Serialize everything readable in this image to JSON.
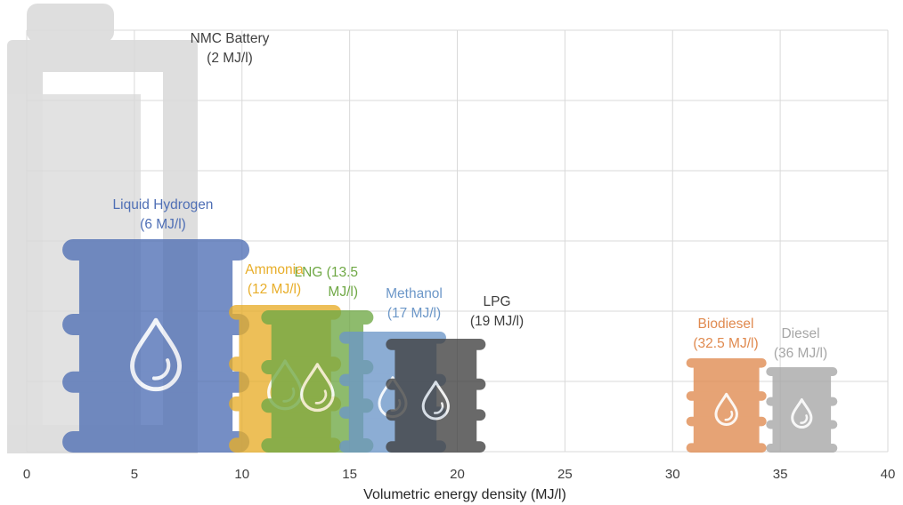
{
  "chart_data": {
    "type": "scatter",
    "xlabel": "Volumetric energy density (MJ/l)",
    "xlim": [
      0,
      40
    ],
    "x_ticks": [
      "0",
      "5",
      "10",
      "15",
      "20",
      "25",
      "30",
      "35",
      "40"
    ],
    "grid": true,
    "series": [
      {
        "name": "NMC Battery",
        "label": [
          "NMC Battery",
          "(2 MJ/l)"
        ],
        "x": 2,
        "color": "#d9d9d9",
        "icon": "battery-icon"
      },
      {
        "name": "Liquid Hydrogen",
        "label": [
          "Liquid Hydrogen",
          "(6 MJ/l)"
        ],
        "x": 6,
        "color": "#4f6fb5",
        "icon": "fuel-barrel-icon"
      },
      {
        "name": "Ammonia",
        "label": [
          "Ammonia",
          "(12 MJ/l)"
        ],
        "x": 12,
        "color": "#e8ae2a",
        "icon": "fuel-barrel-icon"
      },
      {
        "name": "LNG",
        "label": [
          "LNG (13.5",
          "MJ/l)"
        ],
        "x": 13.5,
        "color": "#6fa845",
        "icon": "fuel-barrel-icon"
      },
      {
        "name": "Methanol",
        "label": [
          "Methanol",
          "(17 MJ/l)"
        ],
        "x": 17,
        "color": "#6c97c8",
        "icon": "fuel-barrel-icon"
      },
      {
        "name": "LPG",
        "label": [
          "LPG",
          "(19 MJ/l)"
        ],
        "x": 19,
        "color": "#404040",
        "icon": "fuel-barrel-icon"
      },
      {
        "name": "Biodiesel",
        "label": [
          "Biodiesel",
          "(32.5 MJ/l)"
        ],
        "x": 32.5,
        "color": "#e08a4f",
        "icon": "fuel-barrel-icon"
      },
      {
        "name": "Diesel",
        "label": [
          "Diesel",
          "(36 MJ/l)"
        ],
        "x": 36,
        "color": "#a6a6a6",
        "icon": "fuel-barrel-icon"
      }
    ]
  }
}
